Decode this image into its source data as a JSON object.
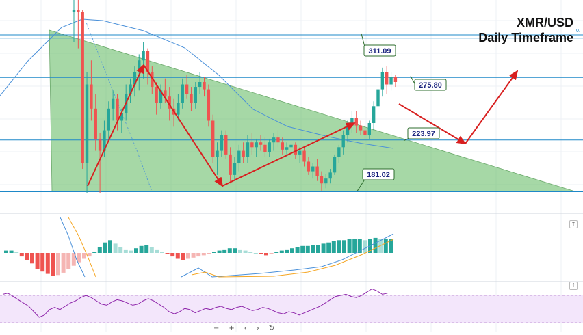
{
  "title": {
    "line1": "XMR/USD",
    "line2": "Daily Timeframe"
  },
  "colors": {
    "bull": "#26a69a",
    "bear": "#ef5350",
    "triangle": "#5cb85c",
    "arrow": "#d81f1f",
    "level": "#1e88c8",
    "rsi_band": "#f3e6fb",
    "rsi_line": "#8e24aa"
  },
  "price_axis": {
    "min": 170,
    "max": 340
  },
  "levels": [
    {
      "label": "311.09",
      "value": 311.09
    },
    {
      "label": "275.80",
      "value": 275.8
    },
    {
      "label": "223.97",
      "value": 223.97
    },
    {
      "label": "181.02",
      "value": 181.02
    }
  ],
  "fib_label": "0.",
  "toolbar": [
    "−",
    "+",
    "‹",
    "›",
    "↻"
  ],
  "chart_data": [
    {
      "type": "candlestick",
      "title": "XMR/USD Daily Timeframe",
      "ylim": [
        170,
        340
      ],
      "candles": [
        [
          330,
          340,
          305,
          332
        ],
        [
          332,
          345,
          300,
          330
        ],
        [
          330,
          332,
          200,
          205
        ],
        [
          205,
          280,
          180,
          270
        ],
        [
          270,
          290,
          240,
          250
        ],
        [
          250,
          262,
          215,
          225
        ],
        [
          225,
          230,
          180,
          215
        ],
        [
          215,
          240,
          210,
          232
        ],
        [
          232,
          256,
          225,
          250
        ],
        [
          250,
          265,
          240,
          258
        ],
        [
          258,
          262,
          232,
          240
        ],
        [
          240,
          250,
          230,
          246
        ],
        [
          246,
          270,
          240,
          262
        ],
        [
          262,
          275,
          255,
          270
        ],
        [
          270,
          285,
          260,
          280
        ],
        [
          280,
          295,
          265,
          290
        ],
        [
          290,
          305,
          275,
          298
        ],
        [
          298,
          300,
          270,
          280
        ],
        [
          280,
          285,
          262,
          268
        ],
        [
          268,
          272,
          245,
          255
        ],
        [
          255,
          270,
          250,
          265
        ],
        [
          265,
          275,
          255,
          260
        ],
        [
          260,
          268,
          240,
          250
        ],
        [
          250,
          258,
          235,
          245
        ],
        [
          245,
          262,
          240,
          255
        ],
        [
          255,
          275,
          250,
          270
        ],
        [
          270,
          278,
          258,
          262
        ],
        [
          262,
          268,
          248,
          255
        ],
        [
          255,
          272,
          250,
          268
        ],
        [
          268,
          280,
          262,
          272
        ],
        [
          272,
          276,
          260,
          266
        ],
        [
          266,
          270,
          235,
          240
        ],
        [
          240,
          245,
          205,
          210
        ],
        [
          210,
          222,
          195,
          215
        ],
        [
          215,
          232,
          210,
          228
        ],
        [
          228,
          232,
          208,
          212
        ],
        [
          212,
          218,
          188,
          195
        ],
        [
          195,
          210,
          190,
          205
        ],
        [
          205,
          220,
          198,
          215
        ],
        [
          215,
          222,
          205,
          210
        ],
        [
          210,
          228,
          205,
          222
        ],
        [
          222,
          230,
          212,
          218
        ],
        [
          218,
          225,
          210,
          222
        ],
        [
          222,
          228,
          215,
          220
        ],
        [
          220,
          226,
          210,
          214
        ],
        [
          214,
          225,
          210,
          222
        ],
        [
          222,
          230,
          215,
          226
        ],
        [
          226,
          232,
          218,
          222
        ],
        [
          222,
          226,
          212,
          216
        ],
        [
          216,
          222,
          210,
          218
        ],
        [
          218,
          224,
          212,
          220
        ],
        [
          220,
          222,
          208,
          212
        ],
        [
          212,
          218,
          205,
          215
        ],
        [
          215,
          218,
          202,
          206
        ],
        [
          206,
          210,
          195,
          198
        ],
        [
          198,
          205,
          192,
          202
        ],
        [
          202,
          208,
          190,
          194
        ],
        [
          194,
          198,
          182,
          188
        ],
        [
          188,
          196,
          184,
          192
        ],
        [
          192,
          200,
          188,
          197
        ],
        [
          197,
          212,
          195,
          210
        ],
        [
          210,
          220,
          205,
          218
        ],
        [
          218,
          232,
          212,
          228
        ],
        [
          228,
          240,
          222,
          236
        ],
        [
          236,
          248,
          230,
          242
        ],
        [
          242,
          248,
          230,
          236
        ],
        [
          236,
          240,
          228,
          232
        ],
        [
          232,
          236,
          224,
          228
        ],
        [
          228,
          240,
          225,
          238
        ],
        [
          238,
          256,
          232,
          252
        ],
        [
          252,
          270,
          248,
          266
        ],
        [
          266,
          284,
          260,
          280
        ],
        [
          280,
          285,
          262,
          270
        ],
        [
          270,
          280,
          265,
          276
        ],
        [
          276,
          278,
          268,
          272
        ]
      ],
      "trendline_shape": "descending-triangle",
      "projection_arrows": [
        "down to 223.97",
        "up toward 311.09"
      ]
    },
    {
      "type": "bar",
      "title": "",
      "series": [
        {
          "name": "",
          "values": [
            2,
            2,
            1,
            -3,
            -6,
            -9,
            -14,
            -16,
            -18,
            -20,
            -19,
            -17,
            -14,
            -11,
            -8,
            -5,
            -3,
            1,
            5,
            9,
            11,
            8,
            5,
            3,
            2,
            4,
            6,
            7,
            5,
            3,
            1,
            -1,
            -3,
            -5,
            -6,
            -5,
            -4,
            -3,
            -2,
            -1,
            1,
            2,
            3,
            4,
            4,
            3,
            2,
            1,
            0,
            -1,
            -2,
            -1,
            1,
            2,
            3,
            4,
            5,
            6,
            6,
            7,
            7,
            8,
            9,
            10,
            11,
            11,
            12,
            12,
            12,
            11,
            12,
            13,
            12,
            12,
            12
          ]
        }
      ],
      "overlay_lines": 2
    },
    {
      "type": "line",
      "title": "",
      "series": [
        {
          "name": "",
          "values": [
            62,
            64,
            58,
            52,
            46,
            40,
            30,
            20,
            24,
            34,
            38,
            34,
            40,
            46,
            50,
            56,
            60,
            56,
            50,
            44,
            42,
            48,
            52,
            50,
            46,
            42,
            44,
            50,
            54,
            50,
            44,
            38,
            30,
            26,
            30,
            36,
            34,
            28,
            32,
            36,
            34,
            38,
            40,
            36,
            34,
            38,
            40,
            36,
            32,
            34,
            38,
            36,
            32,
            28,
            26,
            30,
            28,
            24,
            28,
            32,
            36,
            40,
            46,
            52,
            58,
            60,
            62,
            58,
            56,
            60,
            66,
            72,
            68,
            62,
            64
          ]
        }
      ],
      "ylim": [
        0,
        100
      ]
    }
  ]
}
